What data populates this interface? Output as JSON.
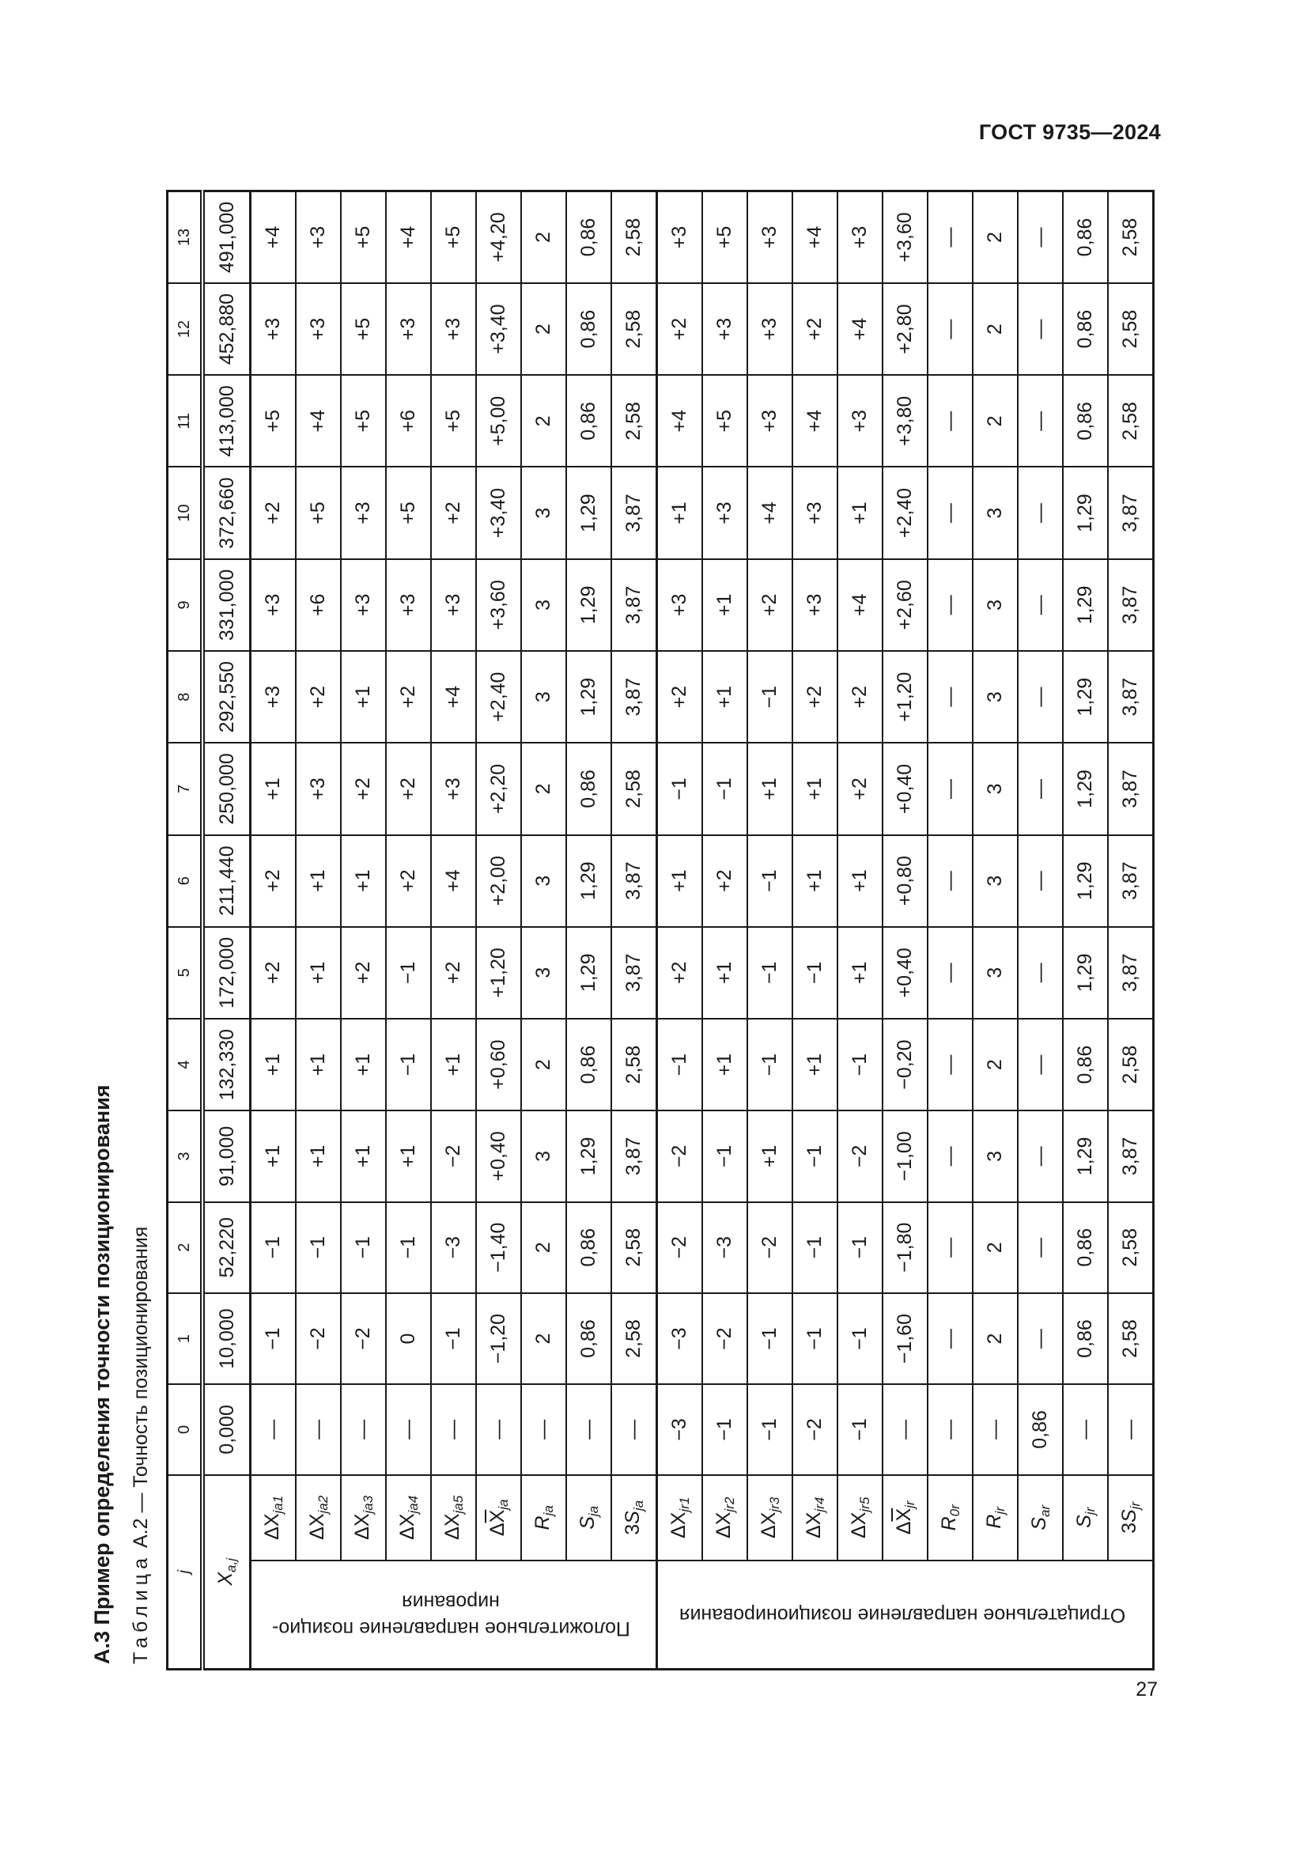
{
  "header": {
    "doc_code": "ГОСТ 9735—2024"
  },
  "section_title": "А.3 Пример определения точности позиционирования",
  "caption": {
    "prefix": "Таблица",
    "text": "А.2 — Точность позиционирования"
  },
  "page_number": "27",
  "table": {
    "j_label": {
      "pre": "",
      "sym": "j",
      "sub": "",
      "bar": false
    },
    "j_values": [
      "0",
      "1",
      "2",
      "3",
      "4",
      "5",
      "6",
      "7",
      "8",
      "9",
      "10",
      "11",
      "12",
      "13"
    ],
    "x_label": {
      "pre": "",
      "sym": "X",
      "sub": "a,j",
      "bar": false
    },
    "x_values": [
      "0,000",
      "10,000",
      "52,220",
      "91,000",
      "132,330",
      "172,000",
      "211,440",
      "250,000",
      "292,550",
      "331,000",
      "372,660",
      "413,000",
      "452,880",
      "491,000"
    ],
    "groups": [
      {
        "label": "Положительное направление позицио-\nнирования",
        "rows": [
          {
            "label": {
              "pre": "Δ",
              "sym": "X",
              "sub": "ja1",
              "bar": false,
              "upright": true
            },
            "values": [
              "—",
              "−1",
              "−1",
              "+1",
              "+1",
              "+2",
              "+2",
              "+1",
              "+3",
              "+3",
              "+2",
              "+5",
              "+3",
              "+4"
            ]
          },
          {
            "label": {
              "pre": "Δ",
              "sym": "X",
              "sub": "ja2",
              "bar": false,
              "upright": true
            },
            "values": [
              "—",
              "−2",
              "−1",
              "+1",
              "+1",
              "+1",
              "+1",
              "+3",
              "+2",
              "+6",
              "+5",
              "+4",
              "+3",
              "+3"
            ]
          },
          {
            "label": {
              "pre": "Δ",
              "sym": "X",
              "sub": "ja3",
              "bar": false,
              "upright": true
            },
            "values": [
              "—",
              "−2",
              "−1",
              "+1",
              "+1",
              "+2",
              "+1",
              "+2",
              "+1",
              "+3",
              "+3",
              "+5",
              "+5",
              "+5"
            ]
          },
          {
            "label": {
              "pre": "Δ",
              "sym": "X",
              "sub": "ja4",
              "bar": false,
              "upright": true
            },
            "values": [
              "—",
              "0",
              "−1",
              "+1",
              "−1",
              "−1",
              "+2",
              "+2",
              "+2",
              "+3",
              "+5",
              "+6",
              "+3",
              "+4"
            ]
          },
          {
            "label": {
              "pre": "Δ",
              "sym": "X",
              "sub": "ja5",
              "bar": false,
              "upright": true
            },
            "values": [
              "—",
              "−1",
              "−3",
              "−2",
              "+1",
              "+2",
              "+4",
              "+3",
              "+4",
              "+3",
              "+2",
              "+5",
              "+3",
              "+5"
            ]
          },
          {
            "label": {
              "pre": "Δ",
              "sym": "X",
              "sub": "ja",
              "bar": true,
              "upright": true
            },
            "values": [
              "—",
              "−1,20",
              "−1,40",
              "+0,40",
              "+0,60",
              "+1,20",
              "+2,00",
              "+2,20",
              "+2,40",
              "+3,60",
              "+3,40",
              "+5,00",
              "+3,40",
              "+4,20"
            ]
          },
          {
            "label": {
              "pre": "",
              "sym": "R",
              "sub": "ja",
              "bar": false
            },
            "values": [
              "—",
              "2",
              "2",
              "3",
              "2",
              "3",
              "3",
              "2",
              "3",
              "3",
              "3",
              "2",
              "2",
              "2"
            ]
          },
          {
            "label": {
              "pre": "",
              "sym": "S",
              "sub": "ja",
              "bar": false
            },
            "values": [
              "—",
              "0,86",
              "0,86",
              "1,29",
              "0,86",
              "1,29",
              "1,29",
              "0,86",
              "1,29",
              "1,29",
              "1,29",
              "0,86",
              "0,86",
              "0,86"
            ]
          },
          {
            "label": {
              "pre": "3",
              "sym": "S",
              "sub": "ja",
              "bar": false
            },
            "values": [
              "—",
              "2,58",
              "2,58",
              "3,87",
              "2,58",
              "3,87",
              "3,87",
              "2,58",
              "3,87",
              "3,87",
              "3,87",
              "2,58",
              "2,58",
              "2,58"
            ]
          }
        ]
      },
      {
        "label": "Отрицательное направление позиционирования",
        "rows": [
          {
            "label": {
              "pre": "Δ",
              "sym": "X",
              "sub": "jr1",
              "bar": false,
              "upright": true
            },
            "values": [
              "−3",
              "−3",
              "−2",
              "−2",
              "−1",
              "+2",
              "+1",
              "−1",
              "+2",
              "+3",
              "+1",
              "+4",
              "+2",
              "+3"
            ]
          },
          {
            "label": {
              "pre": "Δ",
              "sym": "X",
              "sub": "jr2",
              "bar": false,
              "upright": true
            },
            "values": [
              "−1",
              "−2",
              "−3",
              "−1",
              "+1",
              "+1",
              "+2",
              "−1",
              "+1",
              "+1",
              "+3",
              "+5",
              "+3",
              "+5"
            ]
          },
          {
            "label": {
              "pre": "Δ",
              "sym": "X",
              "sub": "jr3",
              "bar": false,
              "upright": true
            },
            "values": [
              "−1",
              "−1",
              "−2",
              "+1",
              "−1",
              "−1",
              "−1",
              "+1",
              "−1",
              "+2",
              "+4",
              "+3",
              "+3",
              "+3"
            ]
          },
          {
            "label": {
              "pre": "Δ",
              "sym": "X",
              "sub": "jr4",
              "bar": false,
              "upright": true
            },
            "values": [
              "−2",
              "−1",
              "−1",
              "−1",
              "+1",
              "−1",
              "+1",
              "+1",
              "+2",
              "+3",
              "+3",
              "+4",
              "+2",
              "+4"
            ]
          },
          {
            "label": {
              "pre": "Δ",
              "sym": "X",
              "sub": "jr5",
              "bar": false,
              "upright": true
            },
            "values": [
              "−1",
              "−1",
              "−1",
              "−2",
              "−1",
              "+1",
              "+1",
              "+2",
              "+2",
              "+4",
              "+1",
              "+3",
              "+4",
              "+3"
            ]
          },
          {
            "label": {
              "pre": "Δ",
              "sym": "X",
              "sub": "jr",
              "bar": true,
              "upright": true
            },
            "values": [
              "—",
              "−1,60",
              "−1,80",
              "−1,00",
              "−0,20",
              "+0,40",
              "+0,80",
              "+0,40",
              "+1,20",
              "+2,60",
              "+2,40",
              "+3,80",
              "+2,80",
              "+3,60"
            ]
          },
          {
            "label": {
              "pre": "",
              "sym": "R",
              "sub": "0r",
              "bar": false
            },
            "values": [
              "—",
              "—",
              "—",
              "—",
              "—",
              "—",
              "—",
              "—",
              "—",
              "—",
              "—",
              "—",
              "—",
              "—"
            ]
          },
          {
            "label": {
              "pre": "",
              "sym": "R",
              "sub": "jr",
              "bar": false
            },
            "values": [
              "—",
              "2",
              "2",
              "3",
              "2",
              "3",
              "3",
              "3",
              "3",
              "3",
              "3",
              "2",
              "2",
              "2"
            ]
          },
          {
            "label": {
              "pre": "",
              "sym": "S",
              "sub": "ar",
              "bar": false
            },
            "values": [
              "0,86",
              "—",
              "—",
              "—",
              "—",
              "—",
              "—",
              "—",
              "—",
              "—",
              "—",
              "—",
              "—",
              "—"
            ]
          },
          {
            "label": {
              "pre": "",
              "sym": "S",
              "sub": "jr",
              "bar": false
            },
            "values": [
              "—",
              "0,86",
              "0,86",
              "1,29",
              "0,86",
              "1,29",
              "1,29",
              "1,29",
              "1,29",
              "1,29",
              "1,29",
              "0,86",
              "0,86",
              "0,86"
            ]
          },
          {
            "label": {
              "pre": "3",
              "sym": "S",
              "sub": "jr",
              "bar": false
            },
            "values": [
              "—",
              "2,58",
              "2,58",
              "3,87",
              "2,58",
              "3,87",
              "3,87",
              "3,87",
              "3,87",
              "3,87",
              "3,87",
              "2,58",
              "2,58",
              "2,58"
            ]
          }
        ]
      }
    ]
  }
}
